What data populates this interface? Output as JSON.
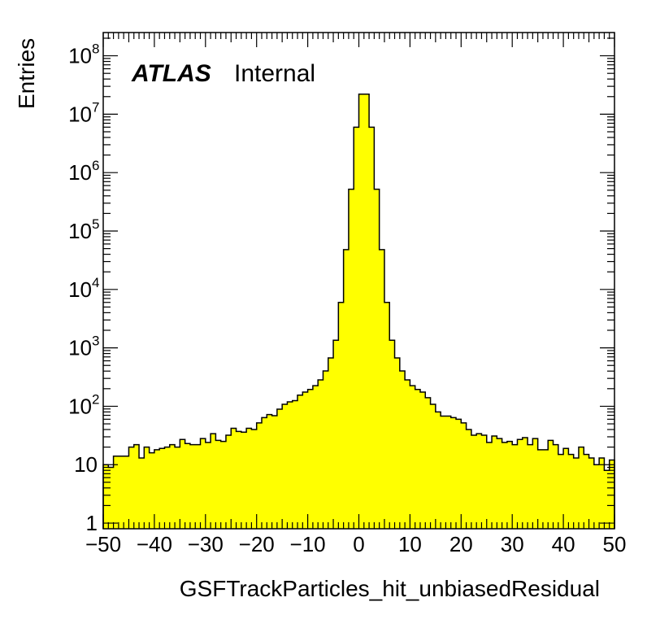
{
  "chart_data": {
    "type": "bar",
    "xlabel": "GSFTrackParticles_hit_unbiasedResidual",
    "ylabel": "Entries",
    "label_bold": "ATLAS",
    "label_plain": "Internal",
    "xlim": [
      -50,
      50
    ],
    "ylim": [
      0.8,
      250000000.0
    ],
    "yscale": "log",
    "grid": false,
    "bin_width": 1,
    "x": [
      -49.5,
      -48.5,
      -47.5,
      -46.5,
      -45.5,
      -44.5,
      -43.5,
      -42.5,
      -41.5,
      -40.5,
      -39.5,
      -38.5,
      -37.5,
      -36.5,
      -35.5,
      -34.5,
      -33.5,
      -32.5,
      -31.5,
      -30.5,
      -29.5,
      -28.5,
      -27.5,
      -26.5,
      -25.5,
      -24.5,
      -23.5,
      -22.5,
      -21.5,
      -20.5,
      -19.5,
      -18.5,
      -17.5,
      -16.5,
      -15.5,
      -14.5,
      -13.5,
      -12.5,
      -11.5,
      -10.5,
      -9.5,
      -8.5,
      -7.5,
      -6.5,
      -5.5,
      -4.5,
      -3.5,
      -2.5,
      -1.5,
      -0.5,
      0.5,
      1.5,
      2.5,
      3.5,
      4.5,
      5.5,
      6.5,
      7.5,
      8.5,
      9.5,
      10.5,
      11.5,
      12.5,
      13.5,
      14.5,
      15.5,
      16.5,
      17.5,
      18.5,
      19.5,
      20.5,
      21.5,
      22.5,
      23.5,
      24.5,
      25.5,
      26.5,
      27.5,
      28.5,
      29.5,
      30.5,
      31.5,
      32.5,
      33.5,
      34.5,
      35.5,
      36.5,
      37.5,
      38.5,
      39.5,
      40.5,
      41.5,
      42.5,
      43.5,
      44.5,
      45.5,
      46.5,
      47.5,
      48.5,
      49.5
    ],
    "values": [
      10,
      9,
      14,
      14,
      14,
      20,
      22,
      13,
      20,
      16,
      18,
      19,
      20,
      22,
      20,
      27,
      23,
      22,
      22,
      28,
      24,
      34,
      26,
      25,
      32,
      42,
      37,
      36,
      42,
      40,
      52,
      64,
      72,
      69,
      89,
      108,
      119,
      125,
      155,
      175,
      194,
      225,
      283,
      403,
      673,
      1350,
      6000,
      48000,
      520000,
      6000000,
      22000000,
      22000000,
      6000000,
      520000,
      48000,
      6000,
      1350,
      673,
      403,
      283,
      225,
      194,
      175,
      140,
      108,
      80,
      68,
      68,
      64,
      60,
      52,
      40,
      32,
      34,
      32,
      24,
      31,
      28,
      24,
      25,
      22,
      27,
      29,
      22,
      28,
      18,
      18,
      26,
      22,
      15,
      19,
      15,
      13,
      20,
      15,
      13,
      10,
      13,
      8,
      12
    ],
    "x_ticks": [
      "-50",
      "-40",
      "-30",
      "-20",
      "-10",
      "0",
      "10",
      "20",
      "30",
      "40",
      "50"
    ],
    "y_ticks": [
      {
        "value": 1,
        "label": "1",
        "exp": ""
      },
      {
        "value": 10,
        "label": "10",
        "exp": ""
      },
      {
        "value": 100,
        "label": "10",
        "exp": "2"
      },
      {
        "value": 1000,
        "label": "10",
        "exp": "3"
      },
      {
        "value": 10000,
        "label": "10",
        "exp": "4"
      },
      {
        "value": 100000,
        "label": "10",
        "exp": "5"
      },
      {
        "value": 1000000,
        "label": "10",
        "exp": "6"
      },
      {
        "value": 10000000,
        "label": "10",
        "exp": "7"
      },
      {
        "value": 100000000,
        "label": "10",
        "exp": "8"
      }
    ],
    "colors": {
      "fill": "#ffff00",
      "line": "#000000",
      "frame": "#000000"
    }
  }
}
